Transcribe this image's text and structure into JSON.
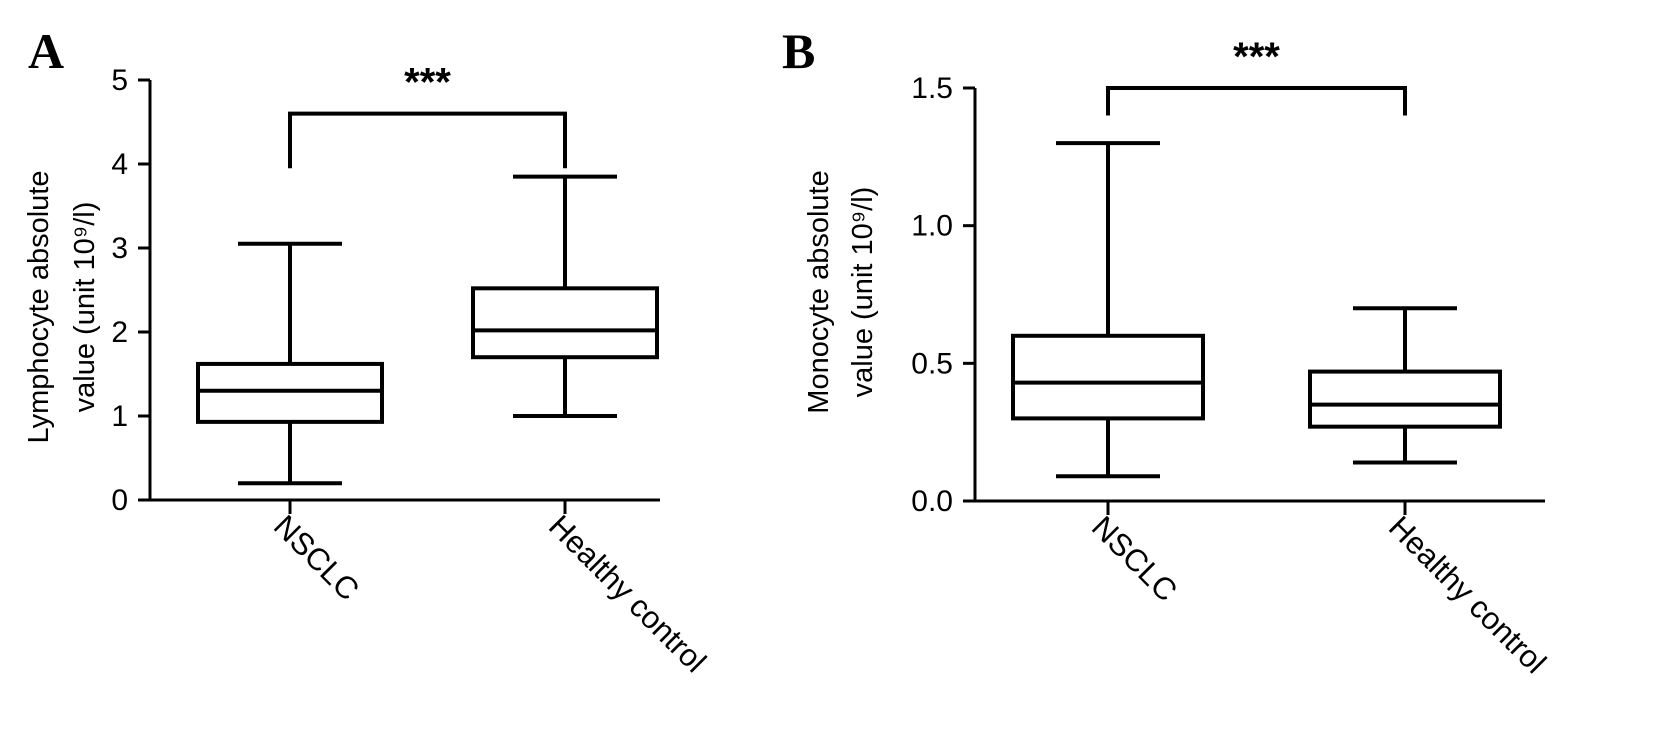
{
  "chart_data": [
    {
      "panel": "A",
      "type": "boxplot",
      "ylabel_line1": "Lymphocyte absolute",
      "ylabel_line2": "value (unit 10⁹/l)",
      "ylim": [
        0,
        5
      ],
      "yticks": [
        0,
        1,
        2,
        3,
        4,
        5
      ],
      "categories": [
        "NSCLC",
        "Healthy control"
      ],
      "boxes": [
        {
          "category": "NSCLC",
          "min": 0.2,
          "q1": 0.93,
          "median": 1.3,
          "q3": 1.62,
          "max": 3.05
        },
        {
          "category": "Healthy control",
          "min": 1.0,
          "q1": 1.7,
          "median": 2.02,
          "q3": 2.52,
          "max": 3.85
        }
      ],
      "significance": {
        "label": "***",
        "bracket_y": 4.6,
        "left_end": 3.95,
        "right_end": 3.95
      }
    },
    {
      "panel": "B",
      "type": "boxplot",
      "ylabel_line1": "Monocyte absolute",
      "ylabel_line2": "value (unit 10⁹/l)",
      "ylim": [
        0,
        1.5
      ],
      "yticks": [
        0.0,
        0.5,
        1.0,
        1.5
      ],
      "ytick_labels": [
        "0.0",
        "0.5",
        "1.0",
        "1.5"
      ],
      "categories": [
        "NSCLC",
        "Healthy control"
      ],
      "boxes": [
        {
          "category": "NSCLC",
          "min": 0.09,
          "q1": 0.3,
          "median": 0.43,
          "q3": 0.6,
          "max": 1.3
        },
        {
          "category": "Healthy control",
          "min": 0.14,
          "q1": 0.27,
          "median": 0.35,
          "q3": 0.47,
          "max": 0.7
        }
      ],
      "significance": {
        "label": "***",
        "bracket_y": 1.5,
        "left_end": 1.4,
        "right_end": 1.4
      }
    }
  ]
}
